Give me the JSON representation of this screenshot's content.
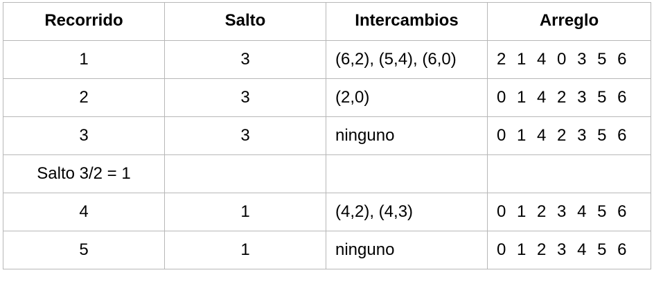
{
  "table": {
    "headers": [
      "Recorrido",
      "Salto",
      "Intercambios",
      "Arreglo"
    ],
    "rows": [
      {
        "recorrido": "1",
        "salto": "3",
        "intercambios": "(6,2), (5,4), (6,0)",
        "arreglo": "2 1 4 0 3 5 6"
      },
      {
        "recorrido": "2",
        "salto": "3",
        "intercambios": "(2,0)",
        "arreglo": "0 1 4 2 3 5 6"
      },
      {
        "recorrido": "3",
        "salto": "3",
        "intercambios": "ninguno",
        "arreglo": "0 1 4 2 3 5 6"
      },
      {
        "recorrido": "Salto 3/2 = 1",
        "salto": "",
        "intercambios": "",
        "arreglo": ""
      },
      {
        "recorrido": "4",
        "salto": "1",
        "intercambios": "(4,2), (4,3)",
        "arreglo": "0 1 2 3 4 5 6"
      },
      {
        "recorrido": "5",
        "salto": "1",
        "intercambios": "ninguno",
        "arreglo": "0 1 2 3 4 5 6"
      }
    ]
  }
}
